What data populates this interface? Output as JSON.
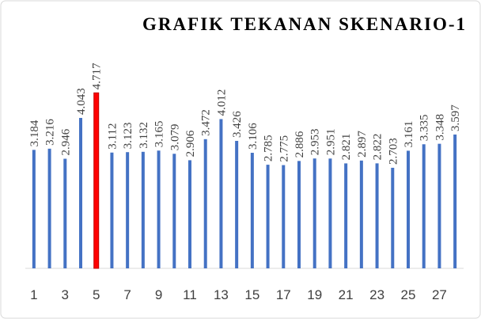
{
  "chart_data": {
    "type": "bar",
    "title": "GRAFIK TEKANAN SKENARIO-1",
    "categories": [
      1,
      null,
      3,
      null,
      5,
      null,
      7,
      null,
      9,
      null,
      11,
      null,
      13,
      null,
      15,
      null,
      17,
      null,
      19,
      null,
      21,
      null,
      23,
      null,
      25,
      null,
      27,
      null
    ],
    "values": [
      3.184,
      3.216,
      2.946,
      4.043,
      4.717,
      3.112,
      3.123,
      3.132,
      3.165,
      3.079,
      2.906,
      3.472,
      4.012,
      3.426,
      3.106,
      2.785,
      2.775,
      2.886,
      2.953,
      2.951,
      2.821,
      2.897,
      2.822,
      2.703,
      3.161,
      3.335,
      3.348,
      3.597
    ],
    "colors": [
      "#4472c4",
      "#4472c4",
      "#4472c4",
      "#4472c4",
      "#ff0000",
      "#4472c4",
      "#4472c4",
      "#4472c4",
      "#4472c4",
      "#4472c4",
      "#4472c4",
      "#4472c4",
      "#4472c4",
      "#4472c4",
      "#4472c4",
      "#4472c4",
      "#4472c4",
      "#4472c4",
      "#4472c4",
      "#4472c4",
      "#4472c4",
      "#4472c4",
      "#4472c4",
      "#4472c4",
      "#4472c4",
      "#4472c4",
      "#4472c4",
      "#4472c4"
    ],
    "ylim": [
      0,
      5
    ]
  }
}
